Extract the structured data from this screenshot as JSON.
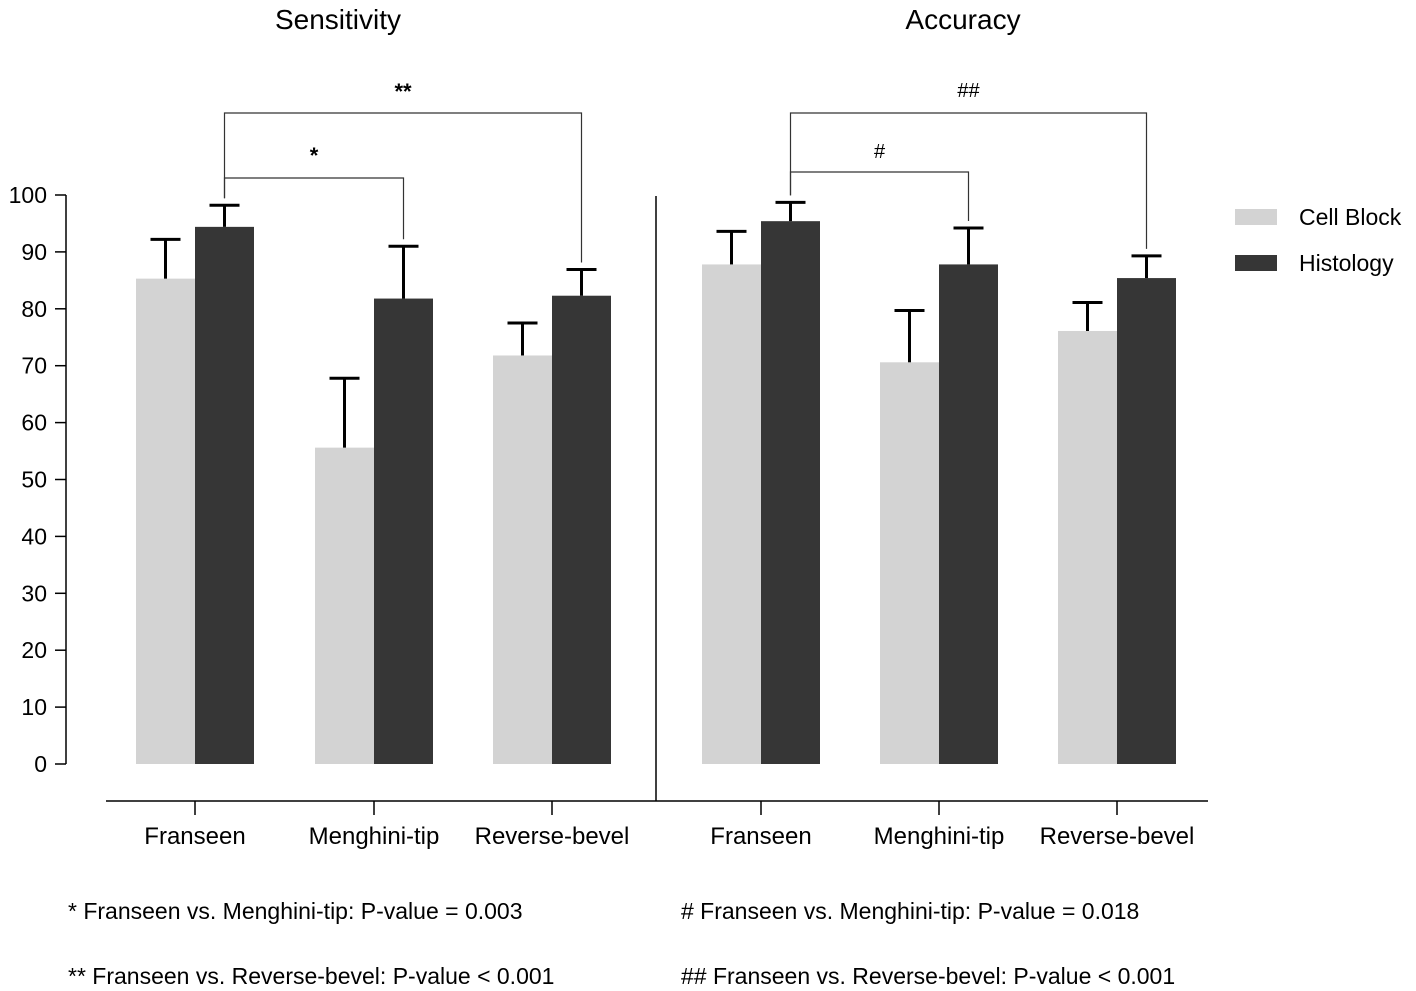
{
  "chart_data": {
    "type": "bar",
    "colors": {
      "cell_block": "#d3d3d3",
      "histology": "#363636"
    },
    "legend": [
      "Cell Block",
      "Histology"
    ],
    "legend_position": "top-right",
    "y_ticks": [
      "0",
      "10",
      "20",
      "30",
      "40",
      "50",
      "60",
      "70",
      "80",
      "90",
      "100"
    ],
    "ylim": [
      0,
      100
    ],
    "panels": [
      {
        "title": "Sensitivity",
        "categories": [
          "Franseen",
          "Menghini-tip",
          "Reverse-bevel"
        ],
        "series": [
          {
            "name": "Cell Block",
            "values": [
              85.3,
              55.6,
              71.8
            ],
            "errors": [
              6.9,
              12.2,
              5.7
            ]
          },
          {
            "name": "Histology",
            "values": [
              94.4,
              81.8,
              82.3
            ],
            "errors": [
              3.8,
              9.2,
              4.6
            ]
          }
        ],
        "brackets": [
          {
            "label": "*",
            "from": 0,
            "to": 1
          },
          {
            "label": "**",
            "from": 0,
            "to": 2
          }
        ]
      },
      {
        "title": "Accuracy",
        "categories": [
          "Franseen",
          "Menghini-tip",
          "Reverse-bevel"
        ],
        "series": [
          {
            "name": "Cell Block",
            "values": [
              87.8,
              70.6,
              76.1
            ],
            "errors": [
              5.8,
              9.1,
              5.0
            ]
          },
          {
            "name": "Histology",
            "values": [
              95.4,
              87.8,
              85.4
            ],
            "errors": [
              3.3,
              6.4,
              3.9
            ]
          }
        ],
        "brackets": [
          {
            "label": "#",
            "from": 0,
            "to": 1
          },
          {
            "label": "##",
            "from": 0,
            "to": 2
          }
        ]
      }
    ],
    "footnotes": [
      "* Franseen vs. Menghini-tip: P-value = 0.003",
      "** Franseen vs. Reverse-bevel: P-value < 0.001",
      "# Franseen vs. Menghini-tip: P-value = 0.018",
      "## Franseen vs. Reverse-bevel: P-value < 0.001"
    ]
  }
}
